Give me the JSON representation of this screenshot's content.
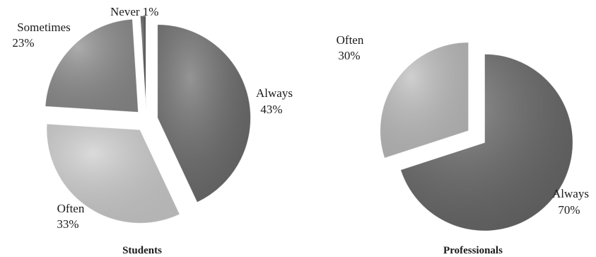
{
  "chart_data": [
    {
      "type": "pie",
      "title": "Students",
      "slices": [
        {
          "label": "Always",
          "value": 43,
          "value_label": "43%",
          "color": "#6b6b6b"
        },
        {
          "label": "Often",
          "value": 33,
          "value_label": "33%",
          "color": "#cdcdcd"
        },
        {
          "label": "Sometimes",
          "value": 23,
          "value_label": "23%",
          "color": "#8c8c8c"
        },
        {
          "label": "Never",
          "value": 1,
          "value_label": "1%",
          "color": "#5a5a5a"
        }
      ],
      "exploded": true,
      "legend": "none"
    },
    {
      "type": "pie",
      "title": "Professionals",
      "slices": [
        {
          "label": "Always",
          "value": 70,
          "value_label": "70%",
          "color": "#676767"
        },
        {
          "label": "Often",
          "value": 30,
          "value_label": "30%",
          "color": "#bdbdbd"
        }
      ],
      "exploded": true,
      "legend": "none"
    }
  ]
}
